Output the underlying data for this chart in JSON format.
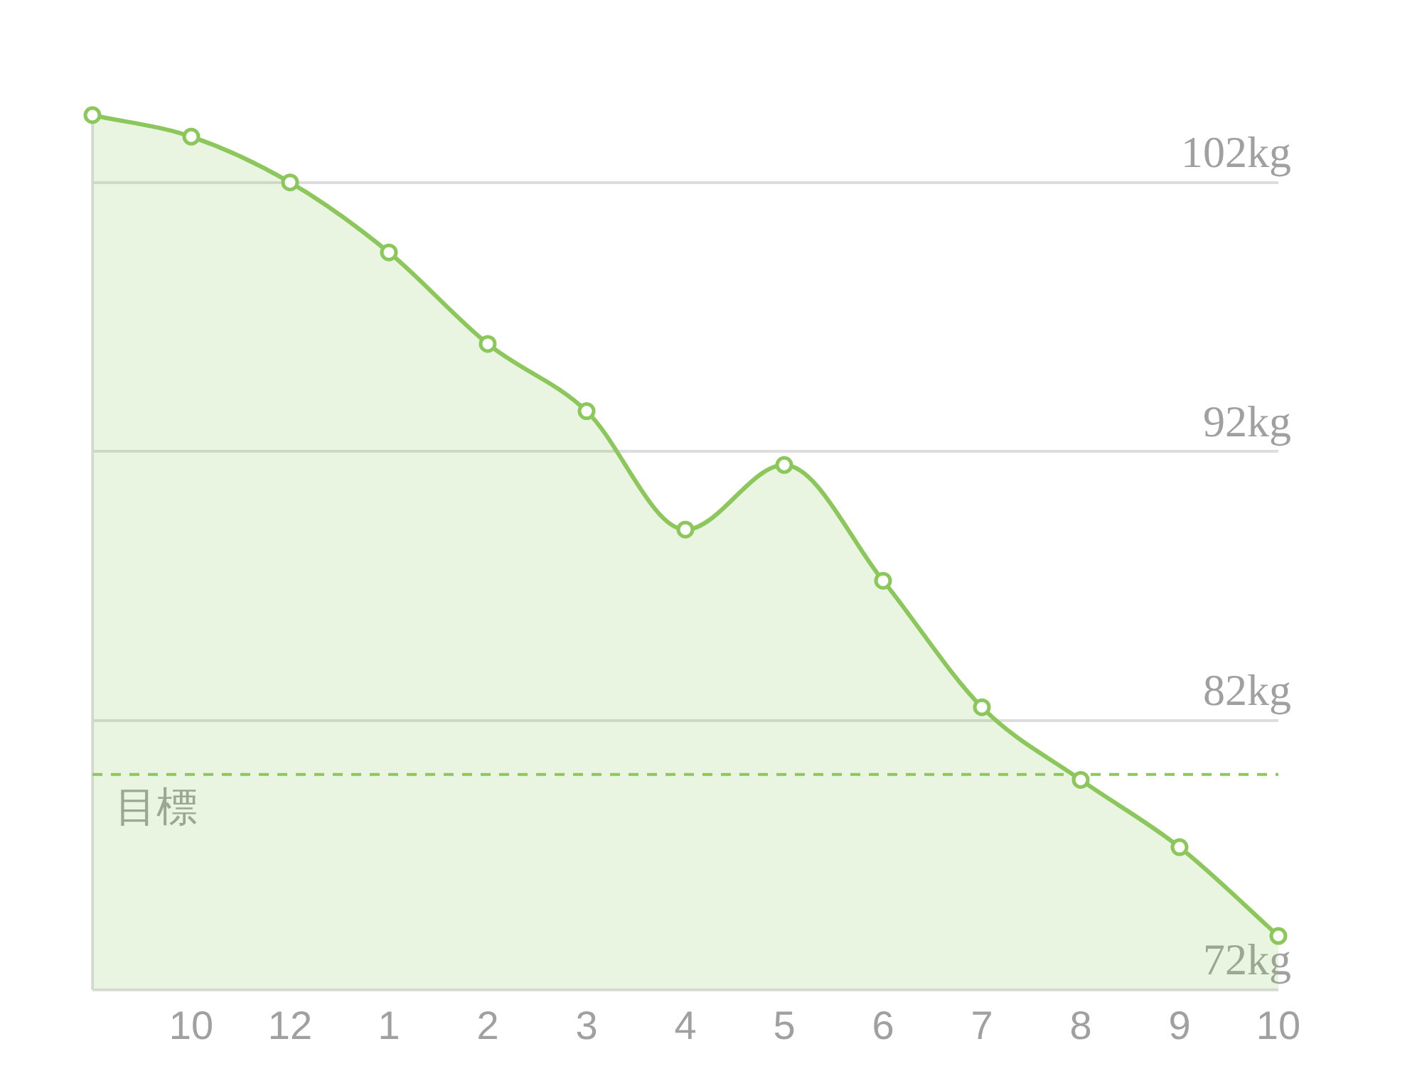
{
  "chart_data": {
    "type": "area",
    "categories": [
      null,
      "10",
      "12",
      "1",
      "2",
      "3",
      "4",
      "5",
      "6",
      "7",
      "8",
      "9",
      "10"
    ],
    "series": [
      {
        "color": "#8bc75b",
        "values": [
          104.5,
          103.7,
          102,
          99.4,
          96,
          93.5,
          89.1,
          91.5,
          87.2,
          82.5,
          79.8,
          77.3,
          74
        ]
      }
    ],
    "ylim": [
      72,
      104.5
    ],
    "yticks": [
      {
        "value": 72,
        "label": "72kg"
      },
      {
        "value": 82,
        "label": "82kg"
      },
      {
        "value": 92,
        "label": "92kg"
      },
      {
        "value": 102,
        "label": "102kg"
      }
    ],
    "grid": "y",
    "marker": "circle",
    "ref_lines": [
      {
        "axis": "y",
        "value": 80,
        "label": "目標",
        "color": "#8bc75b",
        "line_style": "dashed"
      }
    ]
  }
}
